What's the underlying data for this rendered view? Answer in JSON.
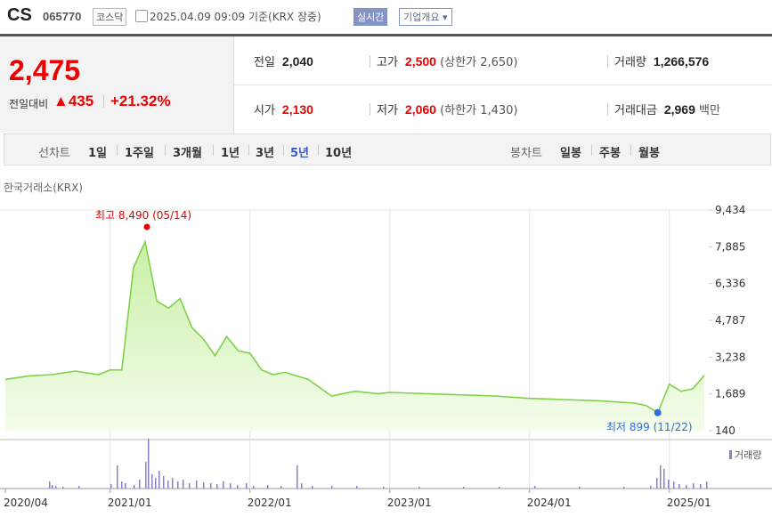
{
  "header": {
    "name": "CS",
    "code": "065770",
    "market": "코스닥",
    "timestamp": "2025.04.09 09:09",
    "basis": "기준(KRX 장중)",
    "realtime_btn": "실시간",
    "company_btn": "기업개요 ▾"
  },
  "quote": {
    "price": "2,475",
    "change_label": "전일대비",
    "change": "▲435",
    "change_pct": "+21.32%",
    "prev_label": "전일",
    "prev": "2,040",
    "high_label": "고가",
    "high": "2,500",
    "upper_limit": "(상한가 2,650)",
    "volume_label": "거래량",
    "volume": "1,266,576",
    "open_label": "시가",
    "open": "2,130",
    "low_label": "저가",
    "low": "2,060",
    "lower_limit": "(하한가 1,430)",
    "value_label": "거래대금",
    "value": "2,969",
    "value_unit": "백만"
  },
  "tabs": {
    "line_label": "선차트",
    "periods": [
      "1일",
      "1주일",
      "3개월",
      "1년",
      "3년",
      "5년",
      "10년"
    ],
    "selected": "5년",
    "candle_label": "봉차트",
    "candles": [
      "일봉",
      "주봉",
      "월봉"
    ]
  },
  "colors": {
    "up": "#e00000",
    "line": "#7fd14a",
    "fill_top": "#c9f0a6",
    "fill_bottom": "#f4fcec",
    "volume": "#8a7fc9",
    "low_marker": "#2f6fd6",
    "high_marker": "#e00000"
  },
  "chart_data": {
    "type": "area",
    "source_label": "한국거래소(KRX)",
    "x_tick_labels": [
      "2020/04",
      "2021/01",
      "2022/01",
      "2023/01",
      "2024/01",
      "2025/01"
    ],
    "y_tick_labels": [
      "9,434",
      "7,885",
      "6,336",
      "4,787",
      "3,238",
      "1,689",
      "140"
    ],
    "ylim": [
      140,
      9434
    ],
    "x": [
      "2020/04",
      "2020/06",
      "2020/08",
      "2020/10",
      "2020/12",
      "2021/01",
      "2021/02",
      "2021/03",
      "2021/04",
      "2021/05",
      "2021/06",
      "2021/07",
      "2021/08",
      "2021/09",
      "2021/10",
      "2021/11",
      "2021/12",
      "2022/01",
      "2022/02",
      "2022/03",
      "2022/04",
      "2022/06",
      "2022/08",
      "2022/10",
      "2022/12",
      "2023/01",
      "2023/04",
      "2023/07",
      "2023/10",
      "2024/01",
      "2024/04",
      "2024/07",
      "2024/10",
      "2024/11",
      "2024/12",
      "2025/01",
      "2025/02",
      "2025/03",
      "2025/04"
    ],
    "values": [
      2300,
      2450,
      2500,
      2650,
      2500,
      2700,
      2700,
      7000,
      8100,
      5600,
      5300,
      5700,
      4500,
      4000,
      3300,
      4100,
      3500,
      3400,
      2700,
      2500,
      2600,
      2300,
      1600,
      1800,
      1700,
      1750,
      1700,
      1650,
      1600,
      1500,
      1450,
      1400,
      1300,
      1200,
      899,
      2100,
      1800,
      1900,
      2475
    ],
    "high_annotation": "최고 8,490 (05/14)",
    "low_annotation": "최저 899 (11/22)",
    "volume_label": "거래량"
  }
}
